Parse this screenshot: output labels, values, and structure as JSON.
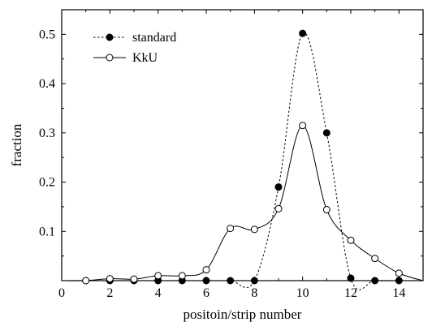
{
  "chart_data": {
    "type": "line",
    "title": "",
    "xlabel": "positoin/strip number",
    "ylabel": "fraction",
    "xlim": [
      0,
      15
    ],
    "ylim": [
      0,
      0.55
    ],
    "x_ticks": [
      0,
      2,
      4,
      6,
      8,
      10,
      12,
      14
    ],
    "y_ticks": [
      0.1,
      0.2,
      0.3,
      0.4,
      0.5
    ],
    "grid": false,
    "legend_position": "top-left",
    "series": [
      {
        "name": "standard",
        "line_style": "dotted",
        "marker": "filled-circle",
        "color": "#000000",
        "x": [
          1,
          2,
          3,
          4,
          5,
          6,
          7,
          8,
          9,
          10,
          11,
          12,
          13,
          14
        ],
        "y": [
          0.0,
          0.0,
          0.0,
          0.0,
          0.0,
          0.0,
          0.0,
          0.0,
          0.19,
          0.502,
          0.3,
          0.005,
          0.0,
          0.0
        ]
      },
      {
        "name": "KkU",
        "line_style": "solid",
        "marker": "open-circle",
        "color": "#000000",
        "x": [
          1,
          2,
          3,
          4,
          5,
          6,
          7,
          8,
          9,
          10,
          11,
          12,
          13,
          14
        ],
        "y": [
          0.0,
          0.004,
          0.003,
          0.01,
          0.01,
          0.022,
          0.106,
          0.104,
          0.146,
          0.315,
          0.144,
          0.082,
          0.045,
          0.015
        ]
      }
    ]
  }
}
